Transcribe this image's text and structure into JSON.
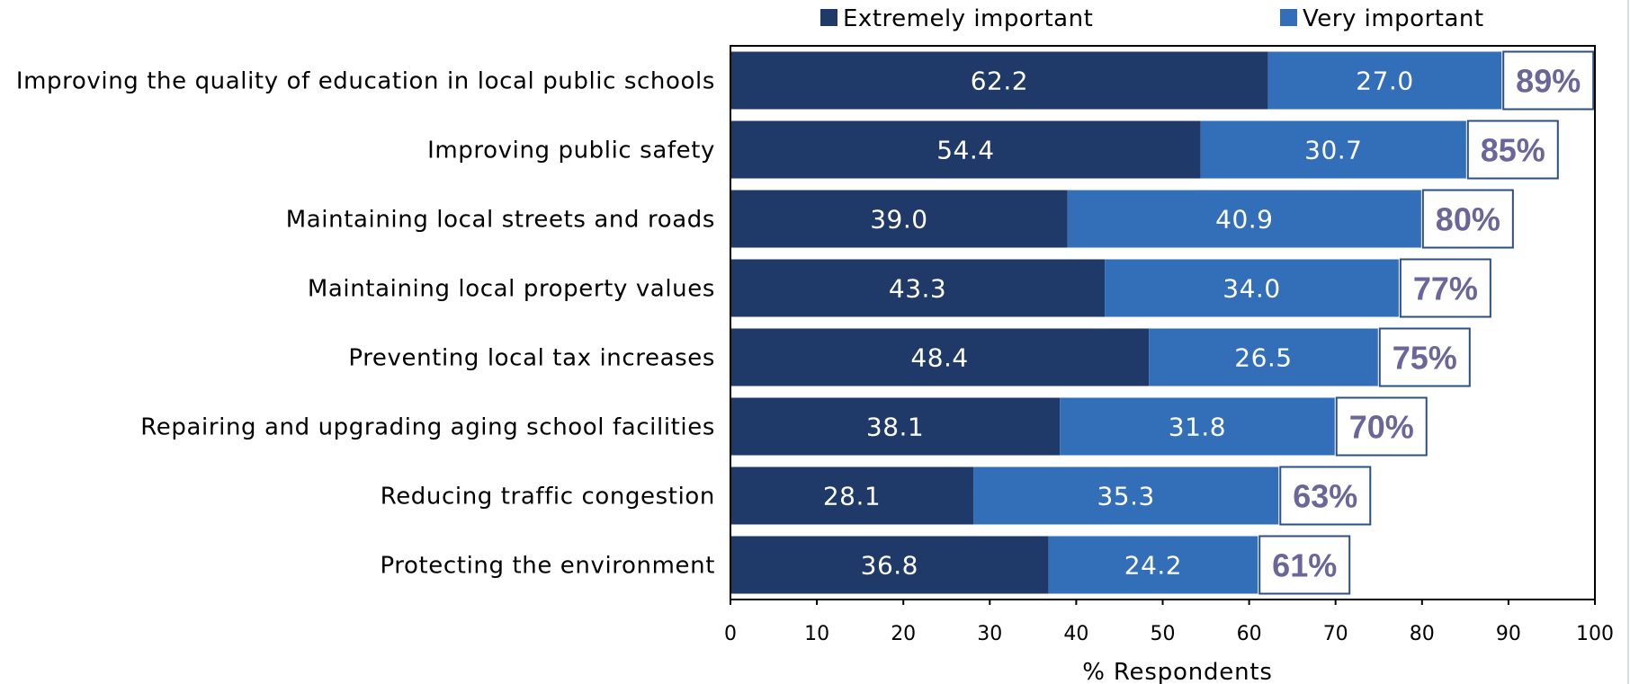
{
  "chart_data": {
    "type": "bar",
    "orientation": "horizontal",
    "stacked": true,
    "categories": [
      "Improving the quality of education in local public schools",
      "Improving public safety",
      "Maintaining local streets and roads",
      "Maintaining local property values",
      "Preventing local tax increases",
      "Repairing and upgrading aging school facilities",
      "Reducing traffic congestion",
      "Protecting the environment"
    ],
    "series": [
      {
        "name": "Extremely important",
        "values": [
          62.2,
          54.4,
          39.0,
          43.3,
          48.4,
          38.1,
          28.1,
          36.8
        ],
        "labels": [
          "62.2",
          "54.4",
          "39.0",
          "43.3",
          "48.4",
          "38.1",
          "28.1",
          "36.8"
        ]
      },
      {
        "name": "Very important",
        "values": [
          27.0,
          30.7,
          40.9,
          34.0,
          26.5,
          31.8,
          35.3,
          24.2
        ],
        "labels": [
          "27.0",
          "30.7",
          "40.9",
          "34.0",
          "26.5",
          "31.8",
          "35.3",
          "24.2"
        ]
      }
    ],
    "totals": [
      "89%",
      "85%",
      "80%",
      "77%",
      "75%",
      "70%",
      "63%",
      "61%"
    ],
    "xlabel": "% Respondents",
    "xlim": [
      0,
      100
    ],
    "xticks": [
      "0",
      "10",
      "20",
      "30",
      "40",
      "50",
      "60",
      "70",
      "80",
      "90",
      "100"
    ],
    "legend_position": "top",
    "grid": false
  },
  "colors": {
    "extremely": "#1f3a68",
    "very": "#336fb8",
    "total_text": "#6b6699",
    "total_border": "#2c4f86",
    "axis": "#000000"
  }
}
